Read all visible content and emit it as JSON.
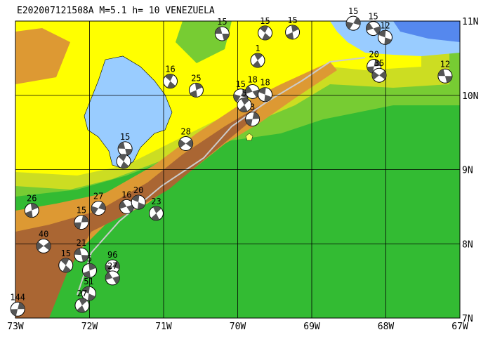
{
  "map": {
    "title": "E202007121508A  M=5.1  h= 10  VENEZUELA",
    "lonlim": [
      -73,
      -67
    ],
    "latlim": [
      7,
      11
    ],
    "xticks": [
      {
        "value": -73,
        "label": "73W"
      },
      {
        "value": -72,
        "label": "72W"
      },
      {
        "value": -71,
        "label": "71W"
      },
      {
        "value": -70,
        "label": "70W"
      },
      {
        "value": -69,
        "label": "69W"
      },
      {
        "value": -68,
        "label": "68W"
      },
      {
        "value": -67,
        "label": "67W"
      }
    ],
    "yticks": [
      {
        "value": 7,
        "label": "7N"
      },
      {
        "value": 8,
        "label": "8N"
      },
      {
        "value": 9,
        "label": "9N"
      },
      {
        "value": 10,
        "label": "10N"
      },
      {
        "value": 11,
        "label": "11N"
      }
    ],
    "grid": true,
    "events": [
      {
        "label": "15",
        "lon": -70.21,
        "lat": 10.83
      },
      {
        "label": "15",
        "lon": -69.63,
        "lat": 10.84
      },
      {
        "label": "15",
        "lon": -69.26,
        "lat": 10.85
      },
      {
        "label": "15",
        "lon": -68.44,
        "lat": 10.97
      },
      {
        "label": "15",
        "lon": -68.17,
        "lat": 10.9
      },
      {
        "label": "12",
        "lon": -68.01,
        "lat": 10.78
      },
      {
        "label": "1",
        "lon": -69.73,
        "lat": 10.47
      },
      {
        "label": "20",
        "lon": -68.16,
        "lat": 10.39
      },
      {
        "label": "35",
        "lon": -68.09,
        "lat": 10.27
      },
      {
        "label": "12",
        "lon": -67.2,
        "lat": 10.26
      },
      {
        "label": "16",
        "lon": -70.91,
        "lat": 10.19
      },
      {
        "label": "25",
        "lon": -70.56,
        "lat": 10.07
      },
      {
        "label": "15",
        "lon": -69.96,
        "lat": 9.99
      },
      {
        "label": "18",
        "lon": -69.8,
        "lat": 10.05
      },
      {
        "label": "18",
        "lon": -69.63,
        "lat": 10.01
      },
      {
        "label": "5",
        "lon": -69.91,
        "lat": 9.87
      },
      {
        "label": "3",
        "lon": -69.8,
        "lat": 9.68
      },
      {
        "label": "28",
        "lon": -70.7,
        "lat": 9.35
      },
      {
        "label": "15",
        "lon": -71.52,
        "lat": 9.28
      },
      {
        "label": null,
        "lon": -71.54,
        "lat": 9.11
      },
      {
        "label": "26",
        "lon": -72.78,
        "lat": 8.45
      },
      {
        "label": "27",
        "lon": -71.88,
        "lat": 8.48
      },
      {
        "label": "16",
        "lon": -71.5,
        "lat": 8.5
      },
      {
        "label": "20",
        "lon": -71.34,
        "lat": 8.56
      },
      {
        "label": "23",
        "lon": -71.1,
        "lat": 8.41
      },
      {
        "label": "15",
        "lon": -72.11,
        "lat": 8.29
      },
      {
        "label": "40",
        "lon": -72.62,
        "lat": 7.97
      },
      {
        "label": "21",
        "lon": -72.11,
        "lat": 7.85
      },
      {
        "label": "15",
        "lon": -72.32,
        "lat": 7.71
      },
      {
        "label": "5",
        "lon": -72.0,
        "lat": 7.64
      },
      {
        "label": "96",
        "lon": -71.69,
        "lat": 7.69
      },
      {
        "label": "27",
        "lon": -71.69,
        "lat": 7.54
      },
      {
        "label": "51",
        "lon": -72.01,
        "lat": 7.33
      },
      {
        "label": "27",
        "lon": -72.1,
        "lat": 7.17
      },
      {
        "label": "144",
        "lon": -72.97,
        "lat": 7.12
      }
    ]
  }
}
